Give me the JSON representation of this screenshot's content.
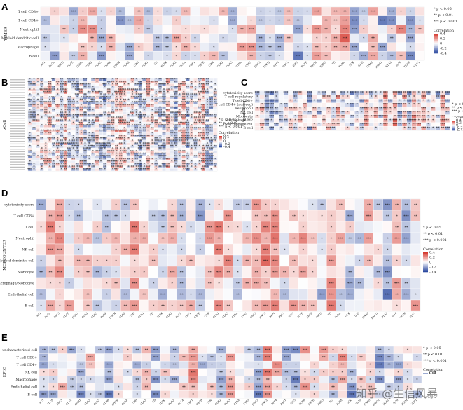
{
  "figure": {
    "watermark": "知乎 @生信风暴"
  },
  "colors": {
    "positive": "#d63a2f",
    "negative": "#2c4aa0",
    "neutral": "#ffffff",
    "grid": "#e8e8e8"
  },
  "chart_data": [
    {
      "panel": "A",
      "type": "heatmap",
      "ylabel": "TIMER",
      "rows": [
        "T cell CD8+",
        "T cell CD4+",
        "Neutrophil",
        "Myeloid dendritic cell",
        "Macrophage",
        "B cell"
      ],
      "columns": [
        "AC1",
        "ALCA",
        "BRC3",
        "CD1S",
        "CDH1",
        "CDK2",
        "CDK5",
        "CDK6",
        "CDKN",
        "CDK8",
        "CDH",
        "CDK1",
        "CD",
        "ELSK",
        "CDK2",
        "COL4",
        "CSF1",
        "CXCR",
        "CDN",
        "CDK2",
        "CDK3",
        "CYBA",
        "CYS5",
        "DHC2",
        "DNC2",
        "DPP4",
        "DSC1",
        "EIF5",
        "ECTB",
        "ERCE",
        "FBXO",
        "FC",
        "FOXA",
        "GCK",
        "GLIS",
        "GNAS",
        "HMG1",
        "HLA2",
        "IL10",
        "TEFM",
        "VDT1"
      ],
      "legend": {
        "title": "Correlation",
        "ticks": [
          "0.4",
          "0.2",
          "0",
          "-0.2",
          "-0.4"
        ],
        "range": [
          -0.4,
          0.4
        ]
      },
      "significance_key": [
        "* p < 0.05",
        "** p < 0.01",
        "*** p < 0.001"
      ]
    },
    {
      "panel": "B",
      "type": "heatmap",
      "ylabel": "xCell",
      "rows_count": 36,
      "legend": {
        "title": "Correlation",
        "ticks": [
          "0.4",
          "0.2",
          "0",
          "-0.2",
          "-0.4"
        ],
        "range": [
          -0.4,
          0.4
        ]
      },
      "significance_key": [
        "* p < 0.05",
        "** p < 0.01",
        "*** p < 0.001"
      ]
    },
    {
      "panel": "C",
      "type": "heatmap",
      "ylabel": "quanTIseq",
      "rows": [
        "cytotoxicity score",
        "T cell regulatory",
        "T cell CD8+",
        "T cell CD4+ (non-reg)",
        "Neutrophil",
        "NK cell",
        "Monocyte",
        "Macrophage M2",
        "Macrophage M1",
        "B cell"
      ],
      "legend": {
        "title": "Correlation",
        "ticks": [
          "0.4",
          "0.2",
          "0",
          "-0.2",
          "-0.4"
        ],
        "range": [
          -0.4,
          0.4
        ]
      },
      "significance_key": [
        "* p < 0.05",
        "** p < 0.01",
        "*** p < 0.001"
      ]
    },
    {
      "panel": "D",
      "type": "heatmap",
      "ylabel": "MCPCOUNTER",
      "rows": [
        "cytotoxicity score",
        "T cell CD8+",
        "T cell",
        "Neutrophil",
        "NK cell",
        "Myeloid dendritic cell",
        "Monocyte",
        "Macrophage/Monocyte",
        "Endothelial cell",
        "B cell"
      ],
      "columns": [
        "AC1",
        "ALCA",
        "BRC3",
        "CD1S",
        "CDH1",
        "CDK2",
        "CDK5",
        "CDK6",
        "CDKN",
        "CDK8",
        "CDH",
        "CDK1",
        "CD",
        "ELSK",
        "CDK2",
        "COL4",
        "CSF1",
        "CXCR",
        "CDN",
        "CDK2",
        "CDK3",
        "CYBA",
        "CYS5",
        "DHC2",
        "DNC2",
        "DPP4",
        "DSC1",
        "EIF5",
        "ECTB",
        "ERCE",
        "FBXO",
        "FC",
        "FOXA",
        "GCK",
        "GLIS",
        "GNAS",
        "HMG1",
        "HLA2",
        "IL10",
        "TEFM",
        "VDT1"
      ],
      "legend": {
        "title": "Correlation",
        "ticks": [
          "0.4",
          "0.2",
          "0",
          "-0.2",
          "-0.4"
        ],
        "range": [
          -0.4,
          0.4
        ]
      },
      "significance_key": [
        "* p < 0.05",
        "** p < 0.01",
        "*** p < 0.001"
      ]
    },
    {
      "panel": "E",
      "type": "heatmap",
      "ylabel": "EPIC",
      "rows": [
        "uncharacterized cell",
        "T cell CD8+",
        "T cell CD4+",
        "NK cell",
        "Macrophage",
        "Endothelial cell",
        "B cell"
      ],
      "columns": [
        "AC1",
        "ALCA",
        "BRC3",
        "CD1S",
        "CDH1",
        "CDK2",
        "CDK5",
        "CDK6",
        "CDKN",
        "CDK8",
        "CDH",
        "CDK1",
        "CD",
        "ELSK",
        "CDK2",
        "COL4",
        "CSF1",
        "CXCR",
        "CDN",
        "CDK2",
        "CDK3",
        "CYBA",
        "CYS5",
        "DHC2",
        "DNC2",
        "DPP4",
        "DSC1",
        "EIF5",
        "ECTB",
        "ERCE",
        "FBXO",
        "FC",
        "FOXA",
        "GCK",
        "GLIS",
        "GNAS",
        "HMG1",
        "HLA2",
        "IL10",
        "TEFM",
        "VDT1"
      ],
      "legend": {
        "title": "Correlation",
        "ticks": [
          "0.4",
          "0.2",
          "0",
          "-0.2",
          "-0.4"
        ],
        "range": [
          -0.4,
          0.4
        ]
      },
      "significance_key": [
        "* p < 0.05",
        "** p < 0.01",
        "*** p < 0.001"
      ]
    }
  ]
}
